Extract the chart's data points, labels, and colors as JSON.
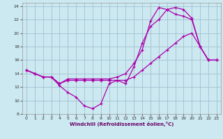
{
  "xlabel": "Windchill (Refroidissement éolien,°C)",
  "bg_color": "#cce8f0",
  "line_color": "#aa00aa",
  "grid_color": "#99bbcc",
  "xlim": [
    -0.5,
    23.5
  ],
  "ylim": [
    8,
    24.5
  ],
  "yticks": [
    8,
    10,
    12,
    14,
    16,
    18,
    20,
    22,
    24
  ],
  "xticks": [
    0,
    1,
    2,
    3,
    4,
    5,
    6,
    7,
    8,
    9,
    10,
    11,
    12,
    13,
    14,
    15,
    16,
    17,
    18,
    19,
    20,
    21,
    22,
    23
  ],
  "curves": [
    {
      "x": [
        0,
        1,
        2,
        3,
        4,
        5,
        6,
        7,
        8,
        9,
        10,
        11,
        12,
        13,
        14,
        15,
        16,
        17,
        18,
        19,
        20,
        21,
        22,
        23
      ],
      "y": [
        14.5,
        14.0,
        13.5,
        13.5,
        12.2,
        11.2,
        10.5,
        9.2,
        8.8,
        9.5,
        12.5,
        13.0,
        12.5,
        15.0,
        18.5,
        21.0,
        22.0,
        23.5,
        23.8,
        23.5,
        22.2,
        18.0,
        16.0,
        16.0
      ]
    },
    {
      "x": [
        0,
        1,
        2,
        3,
        4,
        5,
        6,
        7,
        8,
        9,
        10,
        11,
        12,
        13,
        14,
        15,
        16,
        17,
        18,
        19,
        20,
        21,
        22,
        23
      ],
      "y": [
        14.5,
        14.0,
        13.5,
        13.5,
        12.5,
        13.0,
        13.0,
        13.0,
        13.0,
        13.0,
        13.0,
        13.0,
        13.0,
        13.5,
        14.5,
        15.5,
        16.5,
        17.5,
        18.5,
        19.5,
        20.0,
        18.0,
        16.0,
        16.0
      ]
    },
    {
      "x": [
        0,
        1,
        2,
        3,
        4,
        5,
        6,
        7,
        8,
        9,
        10,
        11,
        12,
        13,
        14,
        15,
        16,
        17,
        18,
        19,
        20,
        21,
        22,
        23
      ],
      "y": [
        14.5,
        14.0,
        13.5,
        13.5,
        12.5,
        13.2,
        13.2,
        13.2,
        13.2,
        13.2,
        13.2,
        13.5,
        14.0,
        15.5,
        17.5,
        21.8,
        23.8,
        23.5,
        22.8,
        22.5,
        22.0,
        18.0,
        16.0,
        16.0
      ]
    }
  ]
}
